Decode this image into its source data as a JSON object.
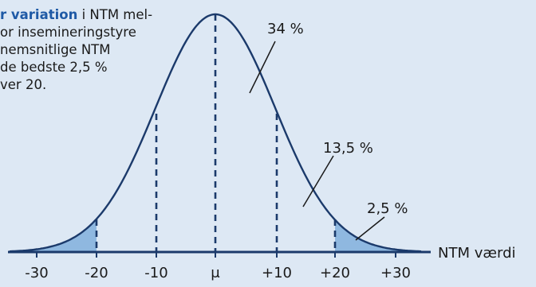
{
  "caption": {
    "highlight": "r variation",
    "line1_rest": " i NTM mel-",
    "line2": "or insemineringstyre",
    "line3": "nemsnitlige NTM",
    "line4": "de bedste 2,5 %",
    "line5": "ver 20."
  },
  "axis": {
    "label": "NTM værdi",
    "ticks": [
      "-30",
      "-20",
      "-10",
      "μ",
      "+10",
      "+20",
      "+30"
    ]
  },
  "regions": {
    "center": "34 %",
    "middle": "13,5 %",
    "tail": "2,5 %"
  },
  "colors": {
    "curve": "#1b3a6b",
    "tail_fill": "#8fb8e0",
    "background": "#dde8f4",
    "highlight": "#1f5aa6"
  }
}
